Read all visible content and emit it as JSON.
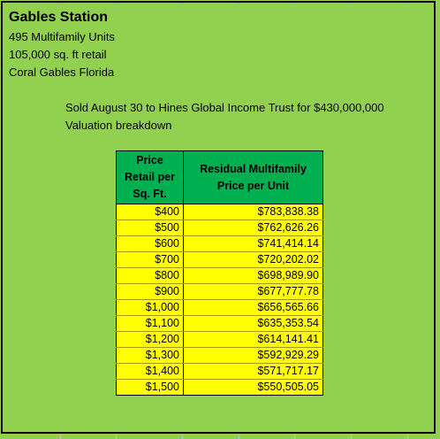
{
  "header": {
    "title": "Gables Station",
    "units": "495 Multifamily Units",
    "retail": "105,000  sq. ft retail",
    "location": "Coral Gables Florida"
  },
  "description": {
    "sale": "Sold August 30 to Hines Global Income Trust for $430,000,000",
    "subtitle": "Valuation breakdown"
  },
  "table": {
    "col1_header": [
      "Price",
      "Retail per",
      "Sq. Ft."
    ],
    "col2_header": [
      "Residual Multifamily",
      "Price per Unit"
    ],
    "rows": [
      {
        "retail": "$400",
        "multifamily": "$783,838.38"
      },
      {
        "retail": "$500",
        "multifamily": "$762,626.26"
      },
      {
        "retail": "$600",
        "multifamily": "$741,414.14"
      },
      {
        "retail": "$700",
        "multifamily": "$720,202.02"
      },
      {
        "retail": "$800",
        "multifamily": "$698,989.90"
      },
      {
        "retail": "$900",
        "multifamily": "$677,777.78"
      },
      {
        "retail": "$1,000",
        "multifamily": "$656,565.66"
      },
      {
        "retail": "$1,100",
        "multifamily": "$635,353.54"
      },
      {
        "retail": "$1,200",
        "multifamily": "$614,141.41"
      },
      {
        "retail": "$1,300",
        "multifamily": "$592,929.29"
      },
      {
        "retail": "$1,400",
        "multifamily": "$571,717.17"
      },
      {
        "retail": "$1,500",
        "multifamily": "$550,505.05"
      }
    ]
  },
  "colors": {
    "background": "#92d050",
    "header_fill": "#00b050",
    "row_fill": "#ffff00"
  }
}
